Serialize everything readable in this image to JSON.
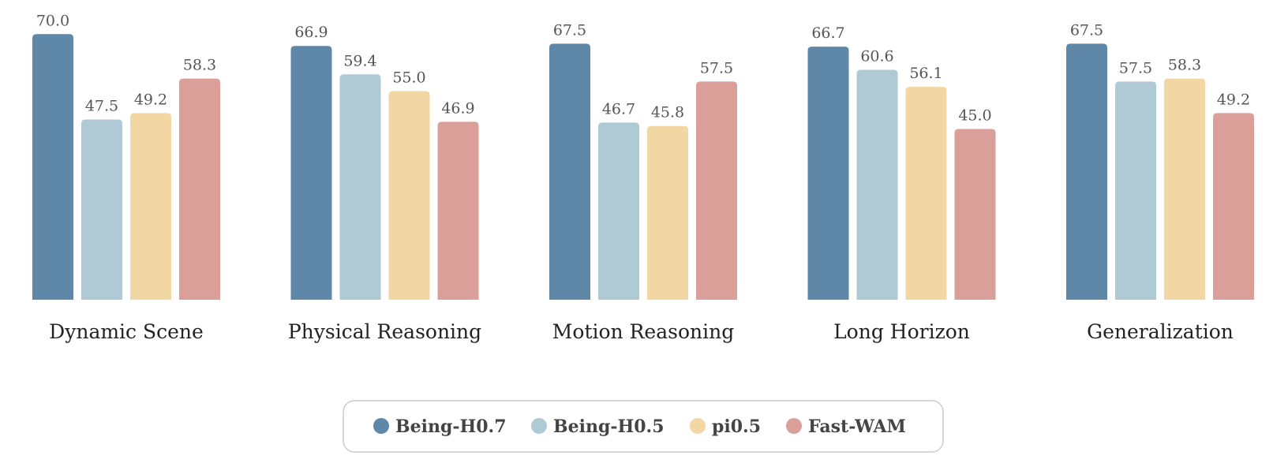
{
  "chart_data": {
    "type": "bar",
    "categories": [
      "Dynamic Scene",
      "Physical Reasoning",
      "Motion Reasoning",
      "Long Horizon",
      "Generalization"
    ],
    "series": [
      {
        "name": "Being-H0.7",
        "color": "#5f88a8",
        "values": [
          70.0,
          66.9,
          67.5,
          66.7,
          67.5
        ]
      },
      {
        "name": "Being-H0.5",
        "color": "#afc9d5",
        "values": [
          47.5,
          59.4,
          46.7,
          60.6,
          57.5
        ]
      },
      {
        "name": "pi0.5",
        "color": "#f2d7a5",
        "values": [
          49.2,
          55.0,
          45.8,
          56.1,
          58.3
        ]
      },
      {
        "name": "Fast-WAM",
        "color": "#da9f99",
        "values": [
          58.3,
          46.9,
          57.5,
          45.0,
          49.2
        ]
      }
    ],
    "value_format": "0.0",
    "ylim": [
      0,
      72
    ],
    "grid": false,
    "legend_position": "bottom-center"
  }
}
